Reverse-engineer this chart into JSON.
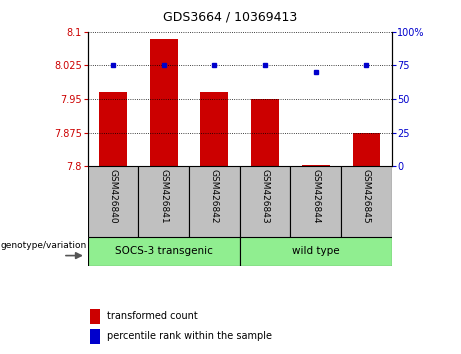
{
  "title": "GDS3664 / 10369413",
  "samples": [
    "GSM426840",
    "GSM426841",
    "GSM426842",
    "GSM426843",
    "GSM426844",
    "GSM426845"
  ],
  "transformed_counts": [
    7.965,
    8.085,
    7.965,
    7.95,
    7.803,
    7.875
  ],
  "percentile_ranks": [
    75,
    75,
    75,
    75,
    70,
    75
  ],
  "ylim_left": [
    7.8,
    8.1
  ],
  "ylim_right": [
    0,
    100
  ],
  "yticks_left": [
    7.8,
    7.875,
    7.95,
    8.025,
    8.1
  ],
  "ytick_labels_left": [
    "7.8",
    "7.875",
    "7.95",
    "8.025",
    "8.1"
  ],
  "yticks_right": [
    0,
    25,
    50,
    75,
    100
  ],
  "ytick_labels_right": [
    "0",
    "25",
    "50",
    "75",
    "100%"
  ],
  "bar_color": "#CC0000",
  "dot_color": "#0000CC",
  "bar_bottom": 7.8,
  "sample_box_color": "#C0C0C0",
  "group1_label": "SOCS-3 transgenic",
  "group1_indices": [
    0,
    1,
    2
  ],
  "group2_label": "wild type",
  "group2_indices": [
    3,
    4,
    5
  ],
  "group_color": "#90EE90",
  "legend_red_label": "transformed count",
  "legend_blue_label": "percentile rank within the sample",
  "genotype_label": "genotype/variation"
}
